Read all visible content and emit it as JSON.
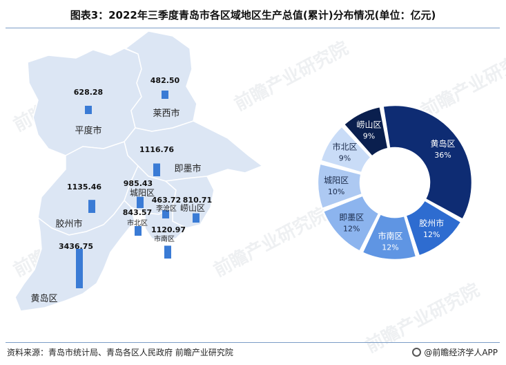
{
  "title": "图表3：2022年三季度青岛市各区域地区生产总值(累计)分布情况(单位：亿元)",
  "footer": {
    "source": "资料来源：青岛市统计局、青岛各区人民政府 前瞻产业研究院",
    "credit": "@前瞻经济学人APP"
  },
  "watermark": "前瞻产业研究院",
  "colors": {
    "map_fill": "#dce6f4",
    "map_stroke": "#ffffff",
    "bar": "#3a7bd5",
    "pie": [
      "#0e2c73",
      "#1f4fa8",
      "#2e6cd0",
      "#5f95e3",
      "#8cb4ee",
      "#adc9f2",
      "#c9dcf7",
      "#0a1f4e"
    ]
  },
  "chart_data": [
    {
      "type": "bar",
      "subtype": "map-bars",
      "unit": "亿元",
      "categories": [
        "平度市",
        "莱西市",
        "即墨市",
        "胶州市",
        "城阳区",
        "李沧区",
        "崂山区",
        "市北区",
        "市南区",
        "黄岛区"
      ],
      "values": [
        628.28,
        482.5,
        1116.76,
        1135.46,
        985.43,
        463.72,
        810.71,
        843.57,
        1120.97,
        3436.75
      ],
      "value_labels": [
        "628.28",
        "482.50",
        "1116.76",
        "1135.46",
        "985.43",
        "463.72",
        "810.71",
        "843.57",
        "1120.97",
        "3436.75"
      ]
    },
    {
      "type": "pie",
      "subtype": "donut",
      "categories": [
        "黄岛区",
        "胶州市",
        "市南区",
        "即墨区",
        "城阳区",
        "市北区",
        "崂山区"
      ],
      "values": [
        36,
        12,
        12,
        12,
        10,
        9,
        9
      ],
      "labels": [
        "36%",
        "12%",
        "12%",
        "12%",
        "10%",
        "9%",
        "9%"
      ],
      "colors": [
        "#0e2c73",
        "#2e6cd0",
        "#5f95e3",
        "#8cb4ee",
        "#adc9f2",
        "#c9dcf7",
        "#0a1f4e"
      ]
    }
  ]
}
